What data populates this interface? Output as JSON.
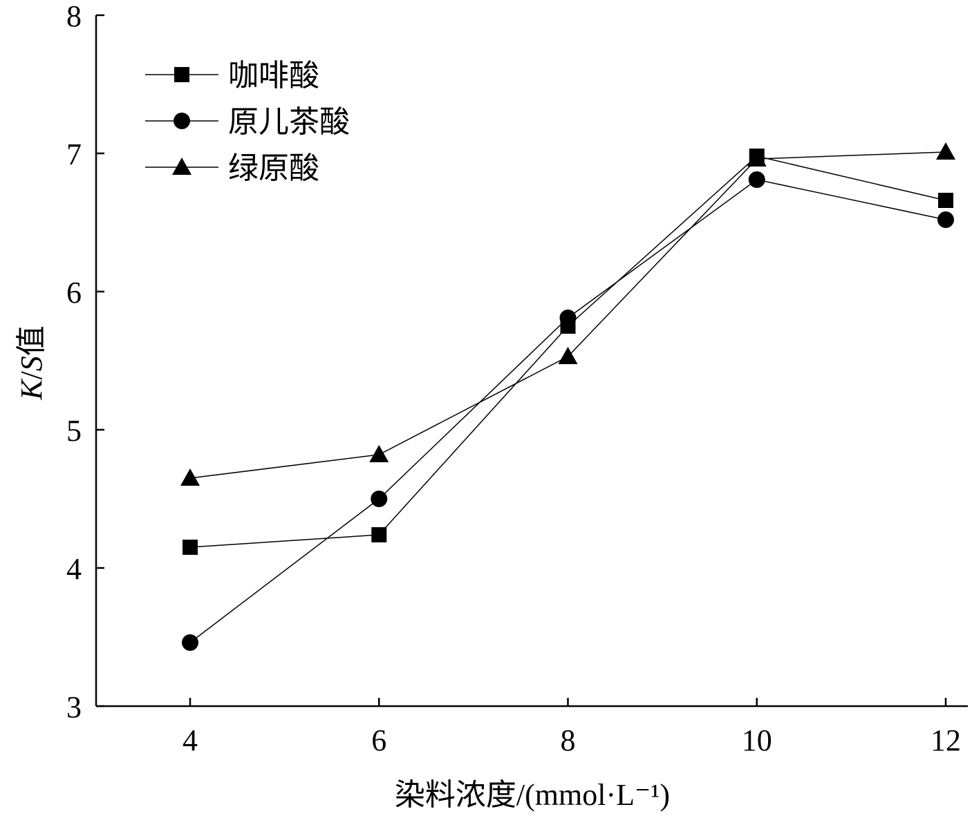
{
  "chart_data": {
    "type": "line",
    "xlabel": "染料浓度/(mmol·L⁻¹)",
    "ylabel_italic_k": "K",
    "ylabel_slash": "/",
    "ylabel_italic_s": "S",
    "ylabel_suffix": "值",
    "x": [
      4,
      6,
      8,
      10,
      12
    ],
    "xlim": [
      3,
      12.2
    ],
    "ylim": [
      3,
      8
    ],
    "xticks": [
      "4",
      "6",
      "8",
      "10",
      "12"
    ],
    "yticks": [
      "3",
      "4",
      "5",
      "6",
      "7",
      "8"
    ],
    "grid": false,
    "legend_position": "top-left",
    "series": [
      {
        "name": "咖啡酸",
        "marker": "square",
        "values": [
          4.15,
          4.24,
          5.75,
          6.98,
          6.66
        ]
      },
      {
        "name": "原儿茶酸",
        "marker": "circle",
        "values": [
          3.46,
          4.5,
          5.81,
          6.81,
          6.52
        ]
      },
      {
        "name": "绿原酸",
        "marker": "triangle",
        "values": [
          4.65,
          4.82,
          5.53,
          6.96,
          7.01
        ]
      }
    ],
    "colors": {
      "line": "#000000",
      "marker": "#000000"
    }
  }
}
